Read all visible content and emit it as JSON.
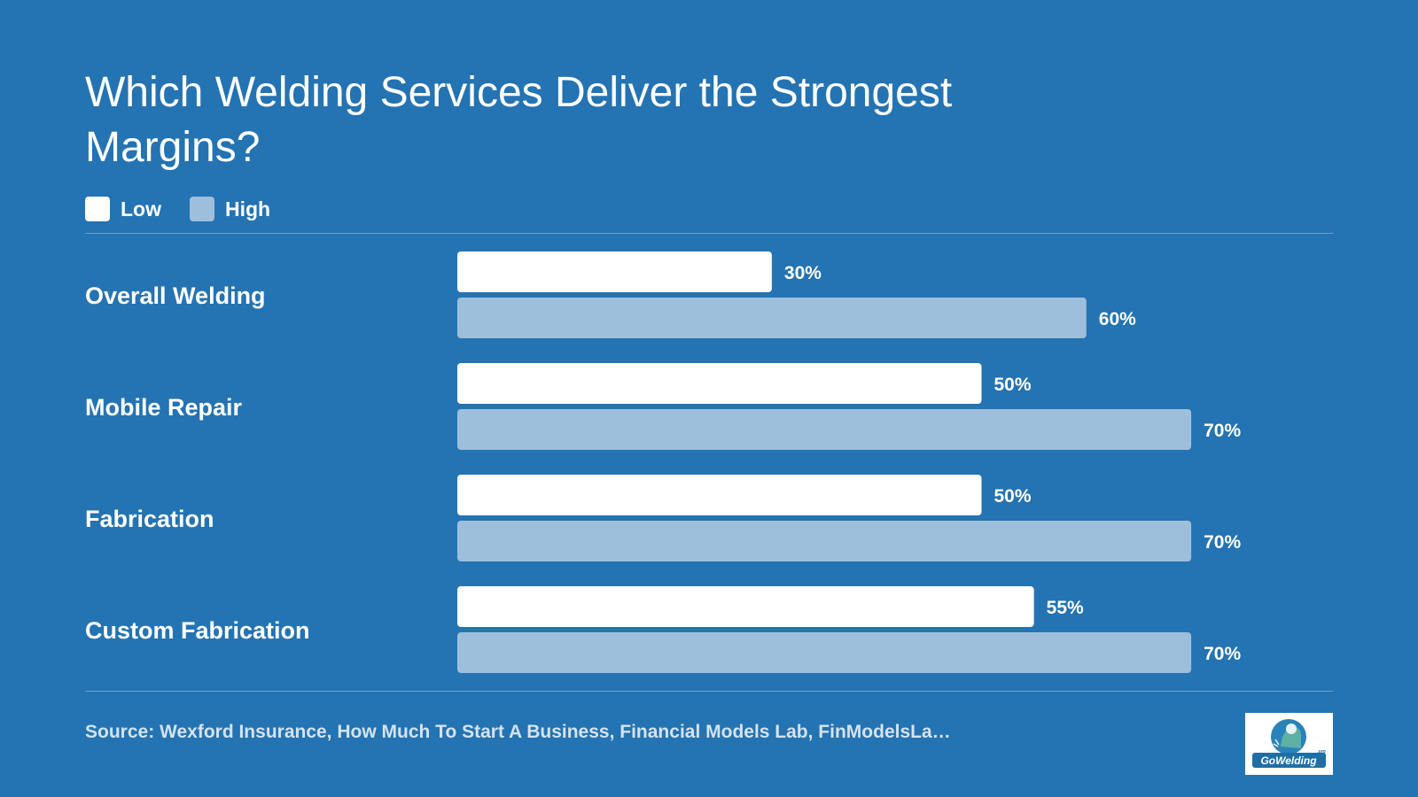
{
  "header": {
    "title": "Which Welding Services Deliver the Strongest Margins?"
  },
  "chart_data": {
    "type": "bar",
    "orientation": "horizontal",
    "title": "Which Welding Services Deliver the Strongest Margins?",
    "categories": [
      "Overall Welding",
      "Mobile Repair",
      "Fabrication",
      "Custom Fabrication"
    ],
    "series": [
      {
        "name": "Low",
        "color": "#ffffff",
        "values": [
          30,
          50,
          50,
          55
        ]
      },
      {
        "name": "High",
        "color": "#9ebfdc",
        "values": [
          60,
          70,
          70,
          70
        ]
      }
    ],
    "value_suffix": "%",
    "xlim": [
      0,
      100
    ],
    "grid": false,
    "legend_position": "top-left"
  },
  "footer": {
    "source": "Source: Wexford Insurance, How Much To Start A Business, Financial Models Lab, FinModelsLa…",
    "logo_text": "GoWelding",
    "logo_suffix": ".org"
  },
  "colors": {
    "background": "#2473b2",
    "low": "#ffffff",
    "high": "#9ebfdc"
  }
}
